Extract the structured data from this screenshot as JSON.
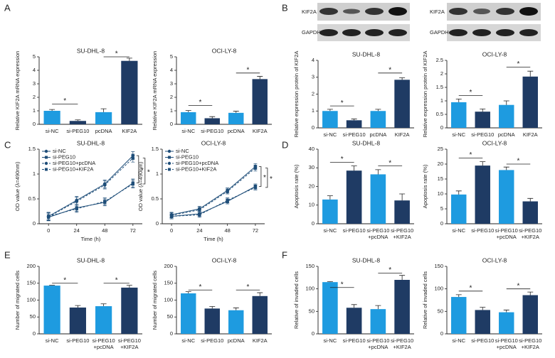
{
  "panels": [
    "A",
    "B",
    "C",
    "D",
    "E",
    "F"
  ],
  "blots": [
    {
      "labels": [
        "KIF2A",
        "GAPDH"
      ]
    },
    {
      "labels": [
        "KIF2A",
        "GAPDH"
      ]
    }
  ],
  "chart_data": [
    {
      "type": "bar",
      "title": "SU-DHL-8",
      "y_label": "Relative KIF2A mRNA expression",
      "categories": [
        [
          "si-NC"
        ],
        [
          "si-PEG10"
        ],
        [
          "pcDNA"
        ],
        [
          "KIF2A"
        ]
      ],
      "values": [
        1.0,
        0.25,
        0.9,
        4.7
      ],
      "errors": [
        0.1,
        0.08,
        0.25,
        0.2
      ],
      "colors": [
        "#1e9be0",
        "#1f3b64",
        "#1e9be0",
        "#1f3b64"
      ],
      "ylim": [
        0,
        5
      ],
      "yticks": [
        0,
        1,
        2,
        3,
        4,
        5
      ],
      "significance": [
        {
          "label": "*",
          "pair": [
            0,
            1
          ],
          "y": 1.5
        },
        {
          "label": "*",
          "pair": [
            2,
            3
          ],
          "y": 5.0
        }
      ]
    },
    {
      "type": "bar",
      "title": "OCI-LY-8",
      "y_label": "Relative KIF2A mRNA expression",
      "categories": [
        [
          "si-NC"
        ],
        [
          "si-PEG10"
        ],
        [
          "pcDNA"
        ],
        [
          "KIF2A"
        ]
      ],
      "values": [
        0.9,
        0.45,
        0.85,
        3.35
      ],
      "errors": [
        0.12,
        0.12,
        0.12,
        0.2
      ],
      "colors": [
        "#1e9be0",
        "#1f3b64",
        "#1e9be0",
        "#1f3b64"
      ],
      "ylim": [
        0,
        5
      ],
      "yticks": [
        0,
        1,
        2,
        3,
        4,
        5
      ],
      "significance": [
        {
          "label": "*",
          "pair": [
            0,
            1
          ],
          "y": 1.4
        },
        {
          "label": "*",
          "pair": [
            2,
            3
          ],
          "y": 3.8
        }
      ]
    },
    {
      "type": "bar",
      "title": "SU-DHL-8",
      "y_label": "Relative expression protein of KIF2A",
      "categories": [
        [
          "si-NC"
        ],
        [
          "si-PEG10"
        ],
        [
          "pcDNA"
        ],
        [
          "KIF2A"
        ]
      ],
      "values": [
        1.0,
        0.45,
        1.0,
        2.85
      ],
      "errors": [
        0.1,
        0.08,
        0.1,
        0.12
      ],
      "colors": [
        "#1e9be0",
        "#1f3b64",
        "#1e9be0",
        "#1f3b64"
      ],
      "ylim": [
        0,
        4
      ],
      "yticks": [
        0,
        1,
        2,
        3,
        4
      ],
      "significance": [
        {
          "label": "*",
          "pair": [
            0,
            1
          ],
          "y": 1.3
        },
        {
          "label": "*",
          "pair": [
            2,
            3
          ],
          "y": 3.25
        }
      ]
    },
    {
      "type": "bar",
      "title": "OCI-LY-8",
      "y_label": "Relative expression protein of KIF2A",
      "categories": [
        [
          "si-NC"
        ],
        [
          "si-PEG10"
        ],
        [
          "pcDNA"
        ],
        [
          "KIF2A"
        ]
      ],
      "values": [
        0.95,
        0.6,
        0.85,
        1.9
      ],
      "errors": [
        0.12,
        0.1,
        0.15,
        0.2
      ],
      "colors": [
        "#1e9be0",
        "#1f3b64",
        "#1e9be0",
        "#1f3b64"
      ],
      "ylim": [
        0,
        2.5
      ],
      "yticks": [
        0,
        0.5,
        1,
        1.5,
        2,
        2.5
      ],
      "significance": [
        {
          "label": "*",
          "pair": [
            0,
            1
          ],
          "y": 1.2
        },
        {
          "label": "*",
          "pair": [
            2,
            3
          ],
          "y": 2.25
        }
      ]
    },
    {
      "type": "line",
      "title": "SU-DHL-8",
      "y_label": "OD value (λ=490nm)",
      "x_label": "Time (h)",
      "x": [
        0,
        24,
        48,
        72
      ],
      "xlim": [
        -8,
        80
      ],
      "xticks": [
        0,
        24,
        48,
        72
      ],
      "ylim": [
        0,
        1.5
      ],
      "yticks": [
        0,
        0.5,
        1,
        1.5
      ],
      "series": [
        {
          "name": "si-NC",
          "color": "#1f4e79",
          "marker": "circle",
          "dashed": false,
          "values": [
            0.15,
            0.47,
            0.8,
            1.37
          ],
          "errors": [
            0.08,
            0.08,
            0.08,
            0.08
          ]
        },
        {
          "name": "si-PEG10",
          "color": "#1f4e79",
          "marker": "square",
          "dashed": false,
          "values": [
            0.13,
            0.32,
            0.43,
            0.82
          ],
          "errors": [
            0.07,
            0.07,
            0.07,
            0.08
          ]
        },
        {
          "name": "si-PEG10+pcDNA",
          "color": "#1f4e79",
          "marker": "circle",
          "dashed": true,
          "values": [
            0.14,
            0.45,
            0.78,
            1.32
          ],
          "errors": [
            0.08,
            0.08,
            0.08,
            0.08
          ]
        },
        {
          "name": "si-PEG10+KIF2A",
          "color": "#1f4e79",
          "marker": "square",
          "dashed": true,
          "values": [
            0.15,
            0.3,
            0.45,
            0.8
          ],
          "errors": [
            0.07,
            0.07,
            0.07,
            0.08
          ]
        }
      ],
      "significance": [
        {
          "label": "*",
          "pair": [
            0,
            1
          ]
        },
        {
          "label": "*",
          "pair": [
            2,
            3
          ]
        }
      ]
    },
    {
      "type": "line",
      "title": "OCI-LY-8",
      "y_label": "OD value (λ=490nm)",
      "x_label": "Time (h)",
      "x": [
        0,
        24,
        48,
        72
      ],
      "xlim": [
        -8,
        80
      ],
      "xticks": [
        0,
        24,
        48,
        72
      ],
      "ylim": [
        0,
        1.5
      ],
      "yticks": [
        0,
        0.5,
        1,
        1.5
      ],
      "series": [
        {
          "name": "si-NC",
          "color": "#1f4e79",
          "marker": "circle",
          "dashed": false,
          "values": [
            0.18,
            0.3,
            0.67,
            1.15
          ],
          "errors": [
            0.05,
            0.05,
            0.05,
            0.06
          ]
        },
        {
          "name": "si-PEG10",
          "color": "#1f4e79",
          "marker": "square",
          "dashed": false,
          "values": [
            0.15,
            0.2,
            0.45,
            0.75
          ],
          "errors": [
            0.05,
            0.05,
            0.05,
            0.05
          ]
        },
        {
          "name": "si-PEG10+pcDNA",
          "color": "#1f4e79",
          "marker": "circle",
          "dashed": true,
          "values": [
            0.17,
            0.28,
            0.65,
            1.12
          ],
          "errors": [
            0.05,
            0.05,
            0.05,
            0.06
          ]
        },
        {
          "name": "si-PEG10+KIF2A",
          "color": "#1f4e79",
          "marker": "square",
          "dashed": true,
          "values": [
            0.15,
            0.18,
            0.47,
            0.73
          ],
          "errors": [
            0.05,
            0.05,
            0.05,
            0.05
          ]
        }
      ],
      "significance": [
        {
          "label": "*",
          "pair": [
            0,
            1
          ]
        },
        {
          "label": "*",
          "pair": [
            2,
            3
          ]
        }
      ]
    },
    {
      "type": "bar",
      "title": "SU-DHL-8",
      "y_label": "Apoptosis rate (%)",
      "categories": [
        [
          "si-NC"
        ],
        [
          "si-PEG10"
        ],
        [
          "si-PEG10",
          "+pcDNA"
        ],
        [
          "si-PEG10",
          "+KIF2A"
        ]
      ],
      "values": [
        13,
        28.5,
        26.5,
        12.5
      ],
      "errors": [
        2,
        2.5,
        2.5,
        3.5
      ],
      "colors": [
        "#1e9be0",
        "#1f3b64",
        "#1e9be0",
        "#1f3b64"
      ],
      "ylim": [
        0,
        40
      ],
      "yticks": [
        0,
        10,
        20,
        30,
        40
      ],
      "significance": [
        {
          "label": "*",
          "pair": [
            0,
            1
          ],
          "y": 33
        },
        {
          "label": "*",
          "pair": [
            2,
            3
          ],
          "y": 31
        }
      ]
    },
    {
      "type": "bar",
      "title": "OCI-LY-8",
      "y_label": "Apoptosis rate (%)",
      "categories": [
        [
          "si-NC"
        ],
        [
          "si-PEG10"
        ],
        [
          "si-PEG10",
          "+pcDNA"
        ],
        [
          "si-PEG10",
          "+KIF2A"
        ]
      ],
      "values": [
        9.8,
        19.5,
        18,
        7.5
      ],
      "errors": [
        1.2,
        1.3,
        1,
        1
      ],
      "colors": [
        "#1e9be0",
        "#1f3b64",
        "#1e9be0",
        "#1f3b64"
      ],
      "ylim": [
        0,
        25
      ],
      "yticks": [
        0,
        5,
        10,
        15,
        20,
        25
      ],
      "significance": [
        {
          "label": "*",
          "pair": [
            0,
            1
          ],
          "y": 22
        },
        {
          "label": "*",
          "pair": [
            2,
            3
          ],
          "y": 20
        }
      ]
    },
    {
      "type": "bar",
      "title": "SU-DHL-8",
      "y_label": "Number of migrated cells",
      "categories": [
        [
          "si-NC"
        ],
        [
          "si-PEG10"
        ],
        [
          "si-PEG10",
          "+pcDNA"
        ],
        [
          "si-PEG10",
          "+KIF2A"
        ]
      ],
      "values": [
        143,
        78,
        82,
        137
      ],
      "errors": [
        1,
        6,
        7,
        7
      ],
      "colors": [
        "#1e9be0",
        "#1f3b64",
        "#1e9be0",
        "#1f3b64"
      ],
      "ylim": [
        0,
        200
      ],
      "yticks": [
        0,
        50,
        100,
        150,
        200
      ],
      "significance": [
        {
          "label": "*",
          "pair": [
            0,
            1
          ],
          "y": 150
        },
        {
          "label": "*",
          "pair": [
            2,
            3
          ],
          "y": 150
        }
      ]
    },
    {
      "type": "bar",
      "title": "OCI-LY-8",
      "y_label": "Number of migrated cells",
      "categories": [
        [
          "si-NC"
        ],
        [
          "si-PEG10"
        ],
        [
          "pcDNA"
        ],
        [
          "KIF2A"
        ]
      ],
      "values": [
        120,
        75,
        70,
        112
      ],
      "errors": [
        5,
        6,
        7,
        10
      ],
      "colors": [
        "#1e9be0",
        "#1f3b64",
        "#1e9be0",
        "#1f3b64"
      ],
      "ylim": [
        0,
        200
      ],
      "yticks": [
        0,
        50,
        100,
        150,
        200
      ],
      "significance": [
        {
          "label": "*",
          "pair": [
            0,
            1
          ],
          "y": 130
        },
        {
          "label": "*",
          "pair": [
            2,
            3
          ],
          "y": 130
        }
      ]
    },
    {
      "type": "bar",
      "title": "SU-DHL-8",
      "y_label": "Relative of invaded cells",
      "categories": [
        [
          "si-NC"
        ],
        [
          "si-PEG10"
        ],
        [
          "si-PEG10",
          "+pcDNA"
        ],
        [
          "si-PEG10",
          "+KIF2A"
        ]
      ],
      "values": [
        115,
        58,
        55,
        120
      ],
      "errors": [
        1,
        7,
        8,
        10
      ],
      "colors": [
        "#1e9be0",
        "#1f3b64",
        "#1e9be0",
        "#1f3b64"
      ],
      "ylim": [
        0,
        150
      ],
      "yticks": [
        0,
        50,
        100,
        150
      ],
      "significance": [
        {
          "label": "*",
          "pair": [
            0,
            1
          ],
          "y": 103
        },
        {
          "label": "*",
          "pair": [
            2,
            3
          ],
          "y": 135
        }
      ]
    },
    {
      "type": "bar",
      "title": "OCI-LY-8",
      "y_label": "Relative of invaded cells",
      "categories": [
        [
          "si-NC"
        ],
        [
          "si-PEG10"
        ],
        [
          "si-PEG10",
          "+pcDNA"
        ],
        [
          "si-PEG10",
          "+KIF2A"
        ]
      ],
      "values": [
        82,
        53,
        48,
        86
      ],
      "errors": [
        5,
        6,
        5,
        7
      ],
      "colors": [
        "#1e9be0",
        "#1f3b64",
        "#1e9be0",
        "#1f3b64"
      ],
      "ylim": [
        0,
        150
      ],
      "yticks": [
        0,
        50,
        100,
        150
      ],
      "significance": [
        {
          "label": "*",
          "pair": [
            0,
            1
          ],
          "y": 95
        },
        {
          "label": "*",
          "pair": [
            2,
            3
          ],
          "y": 100
        }
      ]
    }
  ]
}
